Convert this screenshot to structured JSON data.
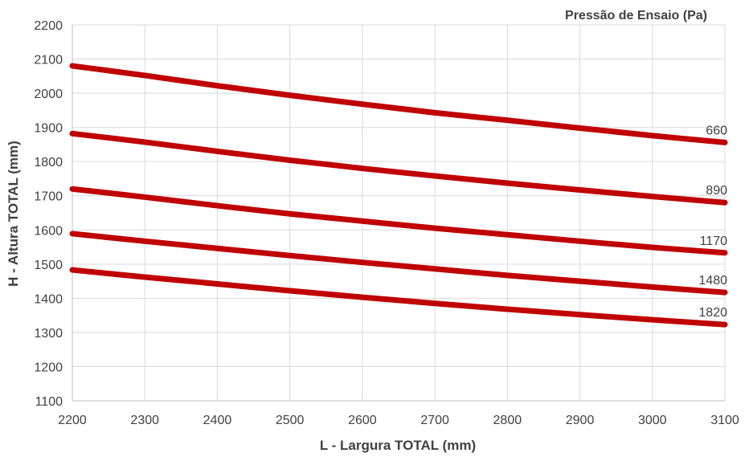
{
  "chart_data": {
    "type": "line",
    "title": "",
    "legend_title": "Pressão de Ensaio (Pa)",
    "xlabel": "L - Largura TOTAL (mm)",
    "ylabel": "H - Altura TOTAL (mm)",
    "xlim": [
      2200,
      3100
    ],
    "ylim": [
      1100,
      2200
    ],
    "x_ticks": [
      2200,
      2300,
      2400,
      2500,
      2600,
      2700,
      2800,
      2900,
      3000,
      3100
    ],
    "y_ticks": [
      1100,
      1200,
      1300,
      1400,
      1500,
      1600,
      1700,
      1800,
      1900,
      2000,
      2100,
      2200
    ],
    "grid": true,
    "line_color": "#c00000",
    "x": [
      2200,
      2300,
      2400,
      2500,
      2600,
      2700,
      2800,
      2900,
      3000,
      3100
    ],
    "series": [
      {
        "name": "660",
        "values": [
          2080,
          2052,
          2022,
          1994,
          1968,
          1943,
          1921,
          1898,
          1876,
          1856
        ]
      },
      {
        "name": "890",
        "values": [
          1882,
          1857,
          1830,
          1804,
          1780,
          1758,
          1737,
          1717,
          1698,
          1680
        ]
      },
      {
        "name": "1170",
        "values": [
          1720,
          1696,
          1671,
          1647,
          1626,
          1605,
          1586,
          1567,
          1549,
          1533
        ]
      },
      {
        "name": "1480",
        "values": [
          1589,
          1567,
          1546,
          1525,
          1505,
          1486,
          1467,
          1450,
          1433,
          1417
        ]
      },
      {
        "name": "1820",
        "values": [
          1483,
          1462,
          1442,
          1422,
          1403,
          1385,
          1368,
          1352,
          1337,
          1323
        ]
      }
    ]
  }
}
